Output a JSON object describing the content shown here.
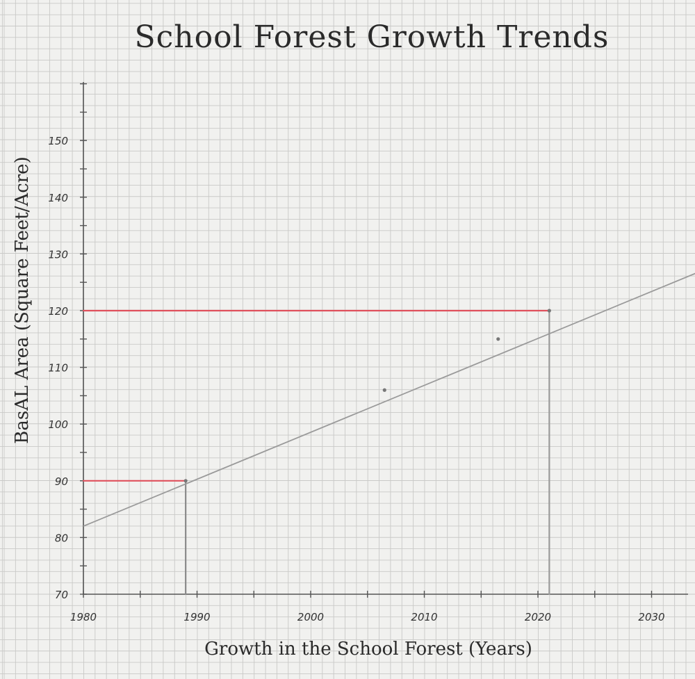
{
  "chart_data": {
    "type": "line",
    "title": "School Forest Growth Trends",
    "xlabel": "Growth in the School Forest (Years)",
    "ylabel": "BasAL Area (Square Feet/Acre)",
    "xlim": [
      1980,
      2038
    ],
    "ylim": [
      70,
      160
    ],
    "x_ticks": [
      1980,
      1990,
      2000,
      2010,
      2020,
      2030
    ],
    "x_tick_labels": [
      "1980",
      "1990",
      "2000",
      "2010",
      "2020",
      "2030"
    ],
    "y_ticks": [
      70,
      80,
      90,
      100,
      110,
      120,
      130,
      140,
      150
    ],
    "y_tick_labels": [
      "70",
      "80",
      "90",
      "100",
      "110",
      "120",
      "130",
      "140",
      "150"
    ],
    "grid": true,
    "series": [
      {
        "x": [
          1980,
          2038
        ],
        "y": [
          82,
          130
        ],
        "color": "#9a9a9a",
        "role": "trend-line"
      }
    ],
    "points": [
      {
        "x": 1989,
        "y": 90
      },
      {
        "x": 2006.5,
        "y": 106
      },
      {
        "x": 2016.5,
        "y": 115
      },
      {
        "x": 2021,
        "y": 120
      }
    ],
    "reference_lines": [
      {
        "orientation": "horizontal",
        "y": 120,
        "x_from": 1980,
        "x_to": 2021,
        "color": "#e0505c"
      },
      {
        "orientation": "horizontal",
        "y": 90,
        "x_from": 1980,
        "x_to": 1989,
        "color": "#e0505c"
      },
      {
        "orientation": "vertical",
        "x": 1989,
        "y_from": 70,
        "y_to": 90,
        "color": "#8a8a8a"
      },
      {
        "orientation": "vertical",
        "x": 2021,
        "y_from": 70,
        "y_to": 120,
        "color": "#9a9a9a"
      }
    ],
    "colors": {
      "paper": "#f1f1ef",
      "grid": "#c9c9c7",
      "axis": "#555555",
      "reference": "#e0505c",
      "trend": "#9a9a9a"
    }
  }
}
